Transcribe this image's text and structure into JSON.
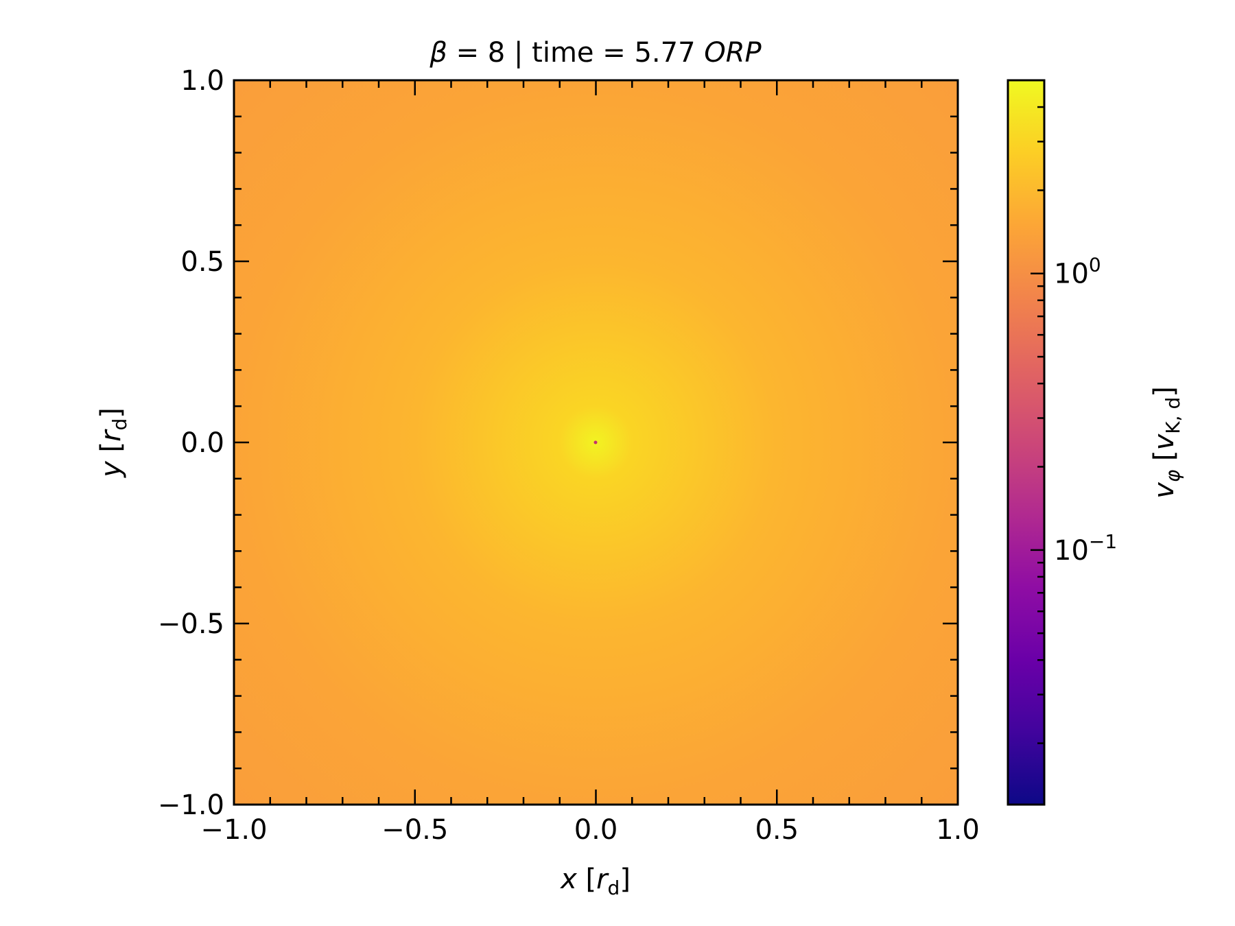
{
  "chart_data": {
    "type": "heatmap",
    "title": {
      "prefix": "β",
      "middle": " = 8 | time = 5.77 ",
      "suffix": "ORP"
    },
    "xlabel": {
      "var": "x",
      "open": " [",
      "unit": "r",
      "sub": "d",
      "close": "]"
    },
    "ylabel": {
      "var": "y",
      "open": " [",
      "unit": "r",
      "sub": "d",
      "close": "]"
    },
    "xlim": [
      -1.0,
      1.0
    ],
    "ylim": [
      -1.0,
      1.0
    ],
    "xticks": [
      -1.0,
      -0.5,
      0.0,
      0.5,
      1.0
    ],
    "yticks": [
      -1.0,
      -0.5,
      0.0,
      0.5,
      1.0
    ],
    "xtick_labels": [
      "−1.0",
      "−0.5",
      "0.0",
      "0.5",
      "1.0"
    ],
    "ytick_labels": [
      "−1.0",
      "−0.5",
      "0.0",
      "0.5",
      "1.0"
    ],
    "colorbar": {
      "scale": "log",
      "colormap": "plasma",
      "range": [
        0.012,
        5.0
      ],
      "ticks": [
        {
          "value": 1.0,
          "base": "10",
          "exp": "0"
        },
        {
          "value": 0.1,
          "base": "10",
          "exp": "−1"
        }
      ],
      "label": {
        "var": "v",
        "sub": "φ",
        "open": " [",
        "unit": "v",
        "unit_sub": "K, d",
        "close": "]"
      }
    },
    "field": {
      "description_values": "radial profile of v_phi",
      "center_value": 4.6,
      "r_0_1_value": 3.0,
      "r_0_5_value": 1.9,
      "r_1_0_value": 1.45,
      "corner_value": 1.3
    }
  }
}
